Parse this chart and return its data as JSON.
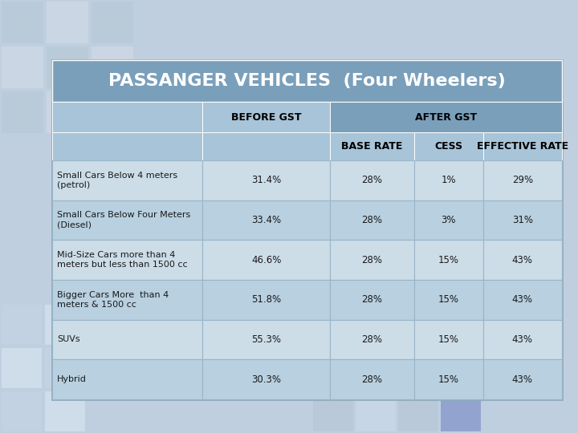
{
  "title": "PASSANGER VEHICLES  (Four Wheelers)",
  "title_bg": "#7a9fbb",
  "title_color": "#ffffff",
  "header_row_bg": "#a8c4d8",
  "subheader_bg": "#a8c4d8",
  "after_gst_header_bg": "#7a9fbb",
  "row_bg_light": "#ccdde8",
  "row_bg_medium": "#b8d0e0",
  "outer_bg": "#c0cfe0",
  "table_border_color": "#8aaabb",
  "cell_border_color": "#9ab5c8",
  "text_dark": "#1a1a1a",
  "header_text": "#000000",
  "rows": [
    [
      "Small Cars Below 4 meters\n(petrol)",
      "31.4%",
      "28%",
      "1%",
      "29%"
    ],
    [
      "Small Cars Below Four Meters\n(Diesel)",
      "33.4%",
      "28%",
      "3%",
      "31%"
    ],
    [
      "Mid-Size Cars more than 4\nmeters but less than 1500 cc",
      "46.6%",
      "28%",
      "15%",
      "43%"
    ],
    [
      "Bigger Cars More  than 4\nmeters & 1500 cc",
      "51.8%",
      "28%",
      "15%",
      "43%"
    ],
    [
      "SUVs",
      "55.3%",
      "28%",
      "15%",
      "43%"
    ],
    [
      "Hybrid",
      "30.3%",
      "28%",
      "15%",
      "43%"
    ]
  ],
  "font_size_title": 16,
  "font_size_header": 9,
  "font_size_cell": 8,
  "dec_squares_light": "#d0dced",
  "dec_squares_dark": "#8899bb"
}
